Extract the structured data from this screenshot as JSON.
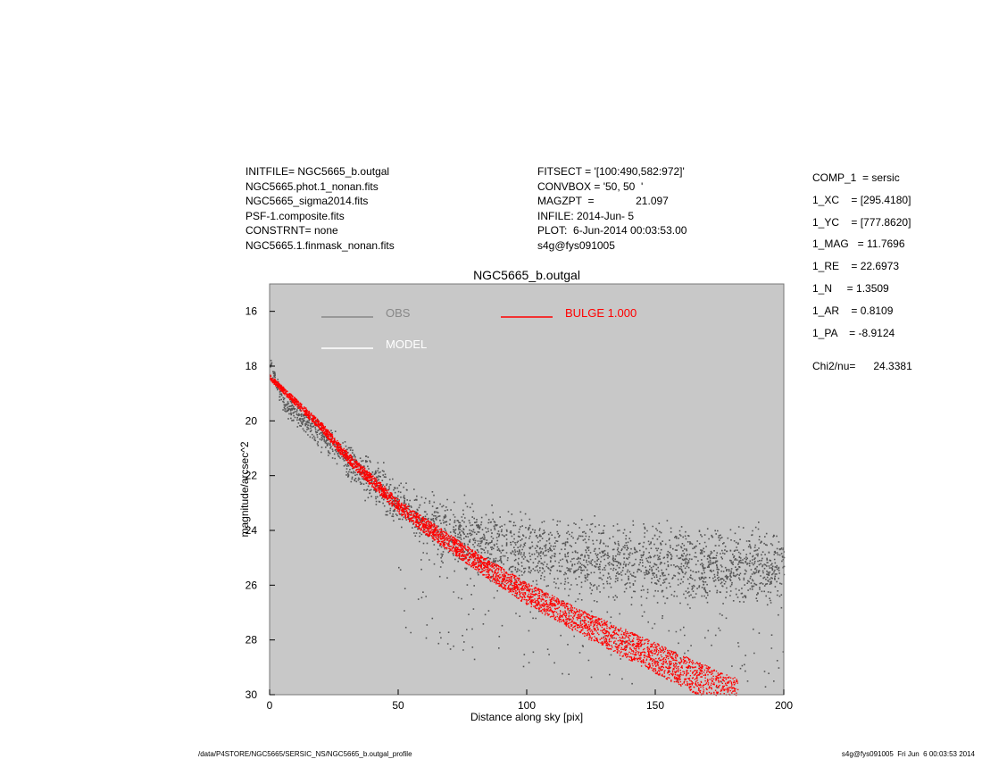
{
  "header": {
    "left": [
      "INITFILE= NGC5665_b.outgal",
      "NGC5665.phot.1_nonan.fits",
      "NGC5665_sigma2014.fits",
      "PSF-1.composite.fits",
      "CONSTRNT= none",
      "NGC5665.1.finmask_nonan.fits"
    ],
    "middle": [
      "FITSECT = '[100:490,582:972]'",
      "CONVBOX = '50, 50  '",
      "MAGZPT  =              21.097",
      "INFILE: 2014-Jun- 5",
      "PLOT:  6-Jun-2014 00:03:53.00",
      "s4g@fys091005"
    ]
  },
  "params": [
    "COMP_1  = sersic",
    "1_XC    = [295.4180]",
    "1_YC    = [777.8620]",
    "1_MAG   = 11.7696",
    "1_RE    = 22.6973",
    "1_N     = 1.3509",
    "1_AR    = 0.8109",
    "1_PA    = -8.9124"
  ],
  "chi2": "Chi2/nu=      24.3381",
  "footer": {
    "left": "/data/P4STORE/NGC5665/SERSIC_NS/NGC5665_b.outgal_profile",
    "right": "s4g@fys091005  Fri Jun  6 00:03:53 2014"
  },
  "colors": {
    "obs": "#555555",
    "obs_legend": "#888888",
    "model": "#ffffff",
    "bulge": "#ff0000",
    "plot_bg": "#c8c8c8"
  },
  "chart_data": {
    "type": "scatter",
    "title": "NGC5665_b.outgal",
    "xlabel": "Distance along sky [pix]",
    "ylabel": "magnitude/arcsec^2",
    "xlim": [
      0,
      200
    ],
    "ylim": [
      30,
      15
    ],
    "y_inverted": true,
    "xticks": [
      "0",
      "50",
      "100",
      "150",
      "200"
    ],
    "yticks": [
      "16",
      "18",
      "20",
      "22",
      "24",
      "26",
      "28",
      "30"
    ],
    "grid": false,
    "legend_position": "top-left",
    "legend": [
      {
        "label": "OBS",
        "color": "#888888"
      },
      {
        "label": "MODEL",
        "color": "#ffffff"
      },
      {
        "label": "BULGE  1.000",
        "color": "#ff0000"
      }
    ],
    "series": [
      {
        "name": "OBS",
        "x": [
          0,
          5,
          10,
          20,
          30,
          40,
          50,
          60,
          80,
          100,
          120,
          150,
          180,
          200
        ],
        "y": [
          18.0,
          19.3,
          19.7,
          20.6,
          21.4,
          22.2,
          23.0,
          23.6,
          24.3,
          24.8,
          25.0,
          25.2,
          25.3,
          25.3
        ]
      },
      {
        "name": "BULGE  1.000",
        "x": [
          0,
          10,
          20,
          30,
          40,
          50,
          60,
          80,
          100,
          120,
          140,
          160,
          180
        ],
        "y": [
          18.4,
          19.3,
          20.2,
          21.3,
          22.2,
          23.1,
          23.8,
          25.1,
          26.3,
          27.3,
          28.2,
          29.1,
          30.0
        ]
      }
    ]
  }
}
